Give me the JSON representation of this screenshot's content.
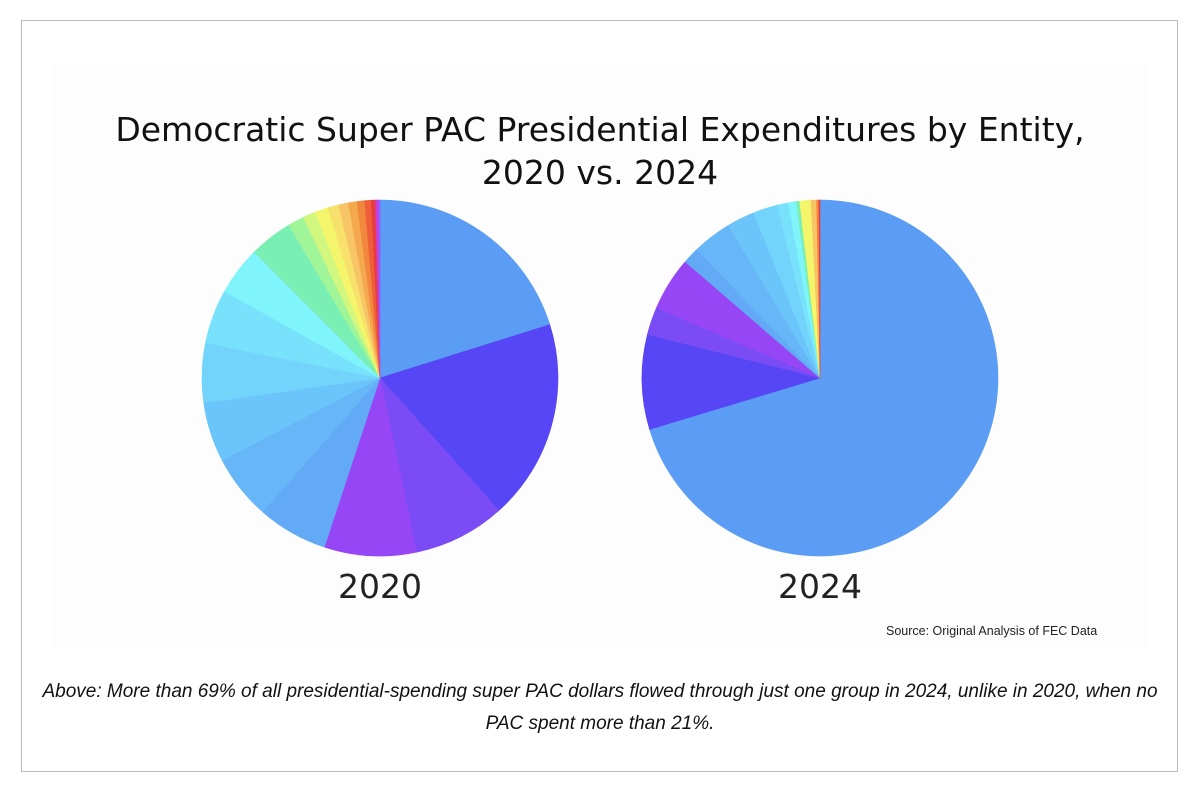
{
  "page": {
    "caption": "Above: More than 69% of all presidential-spending super PAC dollars flowed through just one group in 2024, unlike in 2020, when no PAC spent more than 21%."
  },
  "chart_data": {
    "type": "pie",
    "title_line1": "Democratic Super PAC Presidential Expenditures by Entity,",
    "title_line2": "2020 vs. 2024",
    "source": "Source: Original Analysis of FEC Data",
    "charts": [
      {
        "label": "2020",
        "slices": [
          {
            "value": 20.5,
            "color": "#5b9cf4"
          },
          {
            "value": 18.5,
            "color": "#5746f5"
          },
          {
            "value": 8.5,
            "color": "#7b4cf6"
          },
          {
            "value": 8.5,
            "color": "#9746f6"
          },
          {
            "value": 6.5,
            "color": "#62a9f6"
          },
          {
            "value": 6.0,
            "color": "#66b6f8"
          },
          {
            "value": 5.5,
            "color": "#6bc4fa"
          },
          {
            "value": 5.5,
            "color": "#72d3fb"
          },
          {
            "value": 5.0,
            "color": "#78e2fc"
          },
          {
            "value": 4.5,
            "color": "#7ff5fb"
          },
          {
            "value": 4.0,
            "color": "#7aefb3"
          },
          {
            "value": 1.5,
            "color": "#9ff598"
          },
          {
            "value": 1.2,
            "color": "#d1f77e"
          },
          {
            "value": 1.2,
            "color": "#f4f56a"
          },
          {
            "value": 1.0,
            "color": "#f7e06c"
          },
          {
            "value": 0.9,
            "color": "#f8c566"
          },
          {
            "value": 0.8,
            "color": "#f5a94e"
          },
          {
            "value": 0.7,
            "color": "#f2883d"
          },
          {
            "value": 0.6,
            "color": "#ee5e38"
          },
          {
            "value": 0.4,
            "color": "#e73d42"
          },
          {
            "value": 0.2,
            "color": "#c83fd8"
          },
          {
            "value": 0.2,
            "color": "#a453f3"
          }
        ]
      },
      {
        "label": "2024",
        "slices": [
          {
            "value": 69.5,
            "color": "#5b9cf4"
          },
          {
            "value": 8.5,
            "color": "#5746f5"
          },
          {
            "value": 2.5,
            "color": "#7b4cf6"
          },
          {
            "value": 4.8,
            "color": "#9746f6"
          },
          {
            "value": 1.5,
            "color": "#62a9f6"
          },
          {
            "value": 3.5,
            "color": "#66b6f8"
          },
          {
            "value": 2.5,
            "color": "#6bc4fa"
          },
          {
            "value": 2.2,
            "color": "#72d3fb"
          },
          {
            "value": 1.0,
            "color": "#78e2fc"
          },
          {
            "value": 0.7,
            "color": "#7ff5fb"
          },
          {
            "value": 0.3,
            "color": "#7aefb3"
          },
          {
            "value": 1.0,
            "color": "#f4f56a"
          },
          {
            "value": 0.5,
            "color": "#f8c566"
          },
          {
            "value": 0.2,
            "color": "#f2883d"
          },
          {
            "value": 0.1,
            "color": "#e73d42"
          }
        ]
      }
    ]
  }
}
